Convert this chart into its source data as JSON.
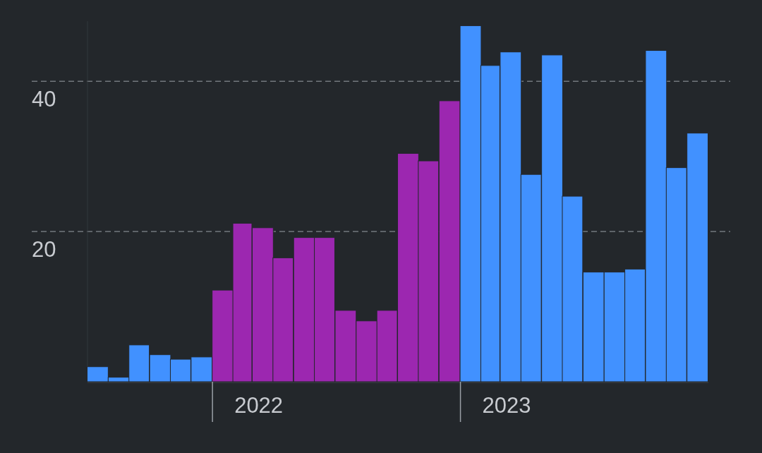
{
  "chart_data": {
    "type": "bar",
    "x": [
      "2021-07-16",
      "2021-08-16",
      "2021-09-15",
      "2021-10-16",
      "2021-11-15",
      "2021-12-16",
      "2022-01-16",
      "2022-02-14",
      "2022-03-16",
      "2022-04-15",
      "2022-05-16",
      "2022-06-15",
      "2022-07-16",
      "2022-08-16",
      "2022-09-15",
      "2022-10-16",
      "2022-11-15",
      "2022-12-16",
      "2023-01-16",
      "2023-02-14",
      "2023-03-16",
      "2023-04-15",
      "2023-05-16",
      "2023-06-15",
      "2023-07-16",
      "2023-08-16",
      "2023-09-15",
      "2023-10-16",
      "2023-11-15",
      "2023-12-16"
    ],
    "values": [
      2.0,
      0.6,
      4.9,
      3.6,
      3.0,
      3.3,
      12.2,
      21.1,
      20.5,
      16.5,
      19.2,
      19.2,
      9.5,
      8.1,
      9.5,
      30.4,
      29.4,
      37.4,
      47.4,
      42.1,
      43.9,
      27.6,
      43.5,
      24.7,
      14.6,
      14.6,
      15.0,
      44.1,
      28.5,
      33.1
    ],
    "colors": [
      "#4191ff",
      "#4191ff",
      "#4191ff",
      "#4191ff",
      "#4191ff",
      "#4191ff",
      "#9c27b0",
      "#9c27b0",
      "#9c27b0",
      "#9c27b0",
      "#9c27b0",
      "#9c27b0",
      "#9c27b0",
      "#9c27b0",
      "#9c27b0",
      "#9c27b0",
      "#9c27b0",
      "#9c27b0",
      "#4191ff",
      "#4191ff",
      "#4191ff",
      "#4191ff",
      "#4191ff",
      "#4191ff",
      "#4191ff",
      "#4191ff",
      "#4191ff",
      "#4191ff",
      "#4191ff",
      "#4191ff"
    ],
    "xlim": [
      "2021-07-01",
      "2024-01-01"
    ],
    "xticks": [
      {
        "value": "2022-01-01",
        "label": null
      },
      {
        "value": "2022-03-10",
        "label": "2022"
      },
      {
        "value": "2023-01-01",
        "label": null
      },
      {
        "value": "2023-03-10",
        "label": "2023"
      }
    ],
    "ylim": [
      0,
      48
    ],
    "yticks": [
      20,
      40
    ],
    "grid": "y"
  }
}
